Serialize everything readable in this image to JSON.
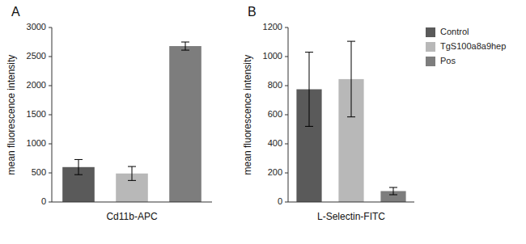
{
  "chart_data": [
    {
      "type": "bar",
      "title": "A",
      "xlabel": "Cd11b-APC",
      "ylabel": "mean fluorescence intensity",
      "categories": [
        null,
        null,
        null
      ],
      "values": [
        600,
        490,
        2680
      ],
      "errors": [
        130,
        120,
        70
      ],
      "colors": [
        "#5a5a5a",
        "#b8b8b8",
        "#7d7d7d"
      ],
      "ylim": [
        0,
        3000
      ],
      "yticks": [
        0,
        500,
        1000,
        1500,
        2000,
        2500,
        3000
      ],
      "grid": false,
      "tick_labels": "y"
    },
    {
      "type": "bar",
      "title": "B",
      "xlabel": "L-Selectin-FITC",
      "ylabel": "mean fluorescence intensity",
      "categories": [
        "Control",
        "TgS100a8a9hep",
        "Pos"
      ],
      "values": [
        775,
        845,
        75
      ],
      "errors": [
        255,
        260,
        25
      ],
      "colors": [
        "#5a5a5a",
        "#b8b8b8",
        "#7d7d7d"
      ],
      "ylim": [
        0,
        1200
      ],
      "yticks": [
        0,
        200,
        400,
        600,
        800,
        1000,
        1200
      ],
      "grid": false,
      "tick_labels": "y",
      "legend": "upper right"
    }
  ]
}
